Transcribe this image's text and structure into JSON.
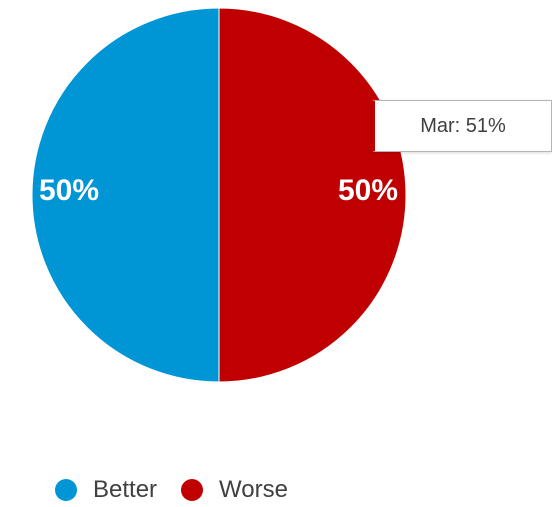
{
  "chart_data": {
    "type": "pie",
    "categories": [
      "Better",
      "Worse"
    ],
    "values": [
      50,
      50
    ],
    "data_labels": [
      "50%",
      "50%"
    ],
    "colors": [
      "#0096d6",
      "#c00000"
    ],
    "legend": [
      "Better",
      "Worse"
    ],
    "legend_position": "bottom",
    "tooltip": "Mar: 51%"
  }
}
